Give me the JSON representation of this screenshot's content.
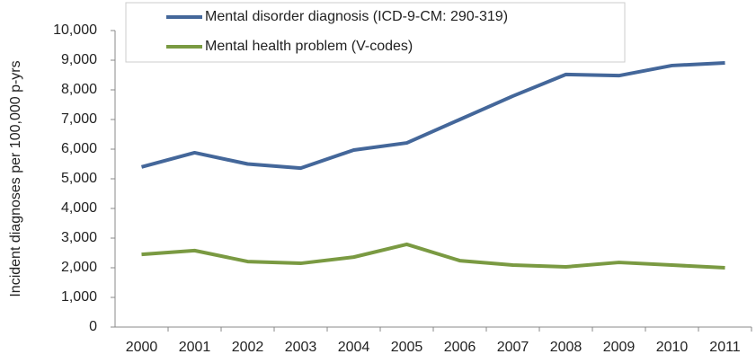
{
  "chart_data": {
    "type": "line",
    "y_label": "Incident diagnoses per 100,000 p-yrs",
    "categories": [
      "2000",
      "2001",
      "2002",
      "2003",
      "2004",
      "2005",
      "2006",
      "2007",
      "2008",
      "2009",
      "2010",
      "2011"
    ],
    "series": [
      {
        "name": "Mental disorder diagnosis (ICD-9-CM: 290-319)",
        "color": "#44679a",
        "values": [
          5400,
          5880,
          5500,
          5360,
          5970,
          6210,
          7000,
          7790,
          8520,
          8480,
          8820,
          8910
        ]
      },
      {
        "name": "Mental health problem  (V-codes)",
        "color": "#7a9a42",
        "values": [
          2450,
          2580,
          2210,
          2150,
          2360,
          2790,
          2240,
          2090,
          2030,
          2180,
          2090,
          2000
        ]
      }
    ],
    "ylim": [
      0,
      10000
    ],
    "yticks": [
      0,
      {
        "value": 1000,
        "label": "1,000"
      },
      {
        "value": 2000,
        "label": "2,000"
      },
      {
        "value": 3000,
        "label": "3,000"
      },
      {
        "value": 4000,
        "label": "4,000"
      },
      {
        "value": 5000,
        "label": "5,000"
      },
      {
        "value": 6000,
        "label": "6,000"
      },
      {
        "value": 7000,
        "label": "7,000"
      },
      {
        "value": 8000,
        "label": "8,000"
      },
      {
        "value": 9000,
        "label": "9,000"
      },
      {
        "value": 10000,
        "label": "10,000"
      }
    ],
    "grid": false
  }
}
